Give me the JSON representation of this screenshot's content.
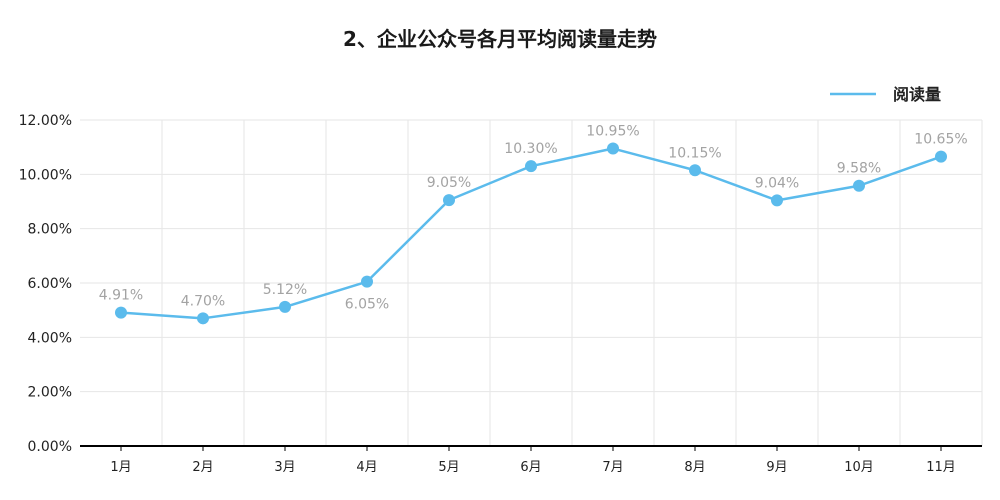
{
  "chart_data": {
    "type": "line",
    "title": "2、企业公众号各月平均阅读量走势",
    "categories": [
      "1月",
      "2月",
      "3月",
      "4月",
      "5月",
      "6月",
      "7月",
      "8月",
      "9月",
      "10月",
      "11月"
    ],
    "series": [
      {
        "name": "阅读量",
        "values": [
          4.91,
          4.7,
          5.12,
          6.05,
          9.05,
          10.3,
          10.95,
          10.15,
          9.04,
          9.58,
          10.65
        ],
        "labels": [
          "4.91%",
          "4.70%",
          "5.12%",
          "6.05%",
          "9.05%",
          "10.30%",
          "10.95%",
          "10.15%",
          "9.04%",
          "9.58%",
          "10.65%"
        ]
      }
    ],
    "ylim": [
      0,
      12
    ],
    "yticks": [
      "0.00%",
      "2.00%",
      "4.00%",
      "6.00%",
      "8.00%",
      "10.00%",
      "12.00%"
    ],
    "xlabel": "",
    "ylabel": "",
    "grid": true,
    "legend_position": "top-right"
  },
  "colors": {
    "line": "#5bbbec",
    "grid": "#e6e6e6",
    "axis": "#000000",
    "label": "#a3a3a3"
  }
}
